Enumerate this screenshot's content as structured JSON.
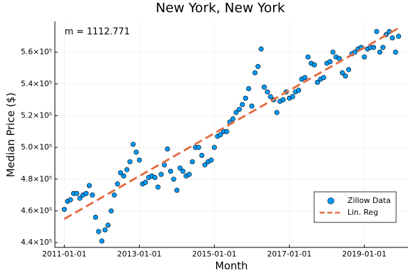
{
  "chart_data": {
    "type": "scatter",
    "title": "New York, New York",
    "annotation": "m = 1112.771",
    "xlabel": "Month",
    "ylabel": "Median Price ($)",
    "legend": "bottom-right",
    "grid": true,
    "xlim": [
      "2010-10-01",
      "2020-03-01"
    ],
    "xticks": [
      "2011-01-01",
      "2013-01-01",
      "2015-01-01",
      "2017-01-01",
      "2019-01-01"
    ],
    "ylim": [
      437000,
      579300
    ],
    "yticks": [
      {
        "value": 440000,
        "label": "4.4×10⁵"
      },
      {
        "value": 460000,
        "label": "4.6×10⁵"
      },
      {
        "value": 480000,
        "label": "4.8×10⁵"
      },
      {
        "value": 500000,
        "label": "5.0×10⁵"
      },
      {
        "value": 520000,
        "label": "5.2×10⁵"
      },
      {
        "value": 540000,
        "label": "5.4×10⁵"
      },
      {
        "value": 560000,
        "label": "5.6×10⁵"
      }
    ],
    "series": [
      {
        "name": "Zillow Data",
        "color": "#009af9",
        "mode": "markers",
        "x": [
          "2011-01-01",
          "2011-02-01",
          "2011-03-01",
          "2011-04-01",
          "2011-05-01",
          "2011-06-01",
          "2011-07-01",
          "2011-08-01",
          "2011-09-01",
          "2011-10-01",
          "2011-11-01",
          "2011-12-01",
          "2012-01-01",
          "2012-02-01",
          "2012-03-01",
          "2012-04-01",
          "2012-05-01",
          "2012-06-01",
          "2012-07-01",
          "2012-08-01",
          "2012-09-01",
          "2012-10-01",
          "2012-11-01",
          "2012-12-01",
          "2013-01-01",
          "2013-02-01",
          "2013-03-01",
          "2013-04-01",
          "2013-05-01",
          "2013-06-01",
          "2013-07-01",
          "2013-08-01",
          "2013-09-01",
          "2013-10-01",
          "2013-11-01",
          "2013-12-01",
          "2014-01-01",
          "2014-02-01",
          "2014-03-01",
          "2014-04-01",
          "2014-05-01",
          "2014-06-01",
          "2014-07-01",
          "2014-08-01",
          "2014-09-01",
          "2014-10-01",
          "2014-11-01",
          "2014-12-01",
          "2015-01-01",
          "2015-02-01",
          "2015-03-01",
          "2015-04-01",
          "2015-05-01",
          "2015-06-01",
          "2015-07-01",
          "2015-08-01",
          "2015-09-01",
          "2015-10-01",
          "2015-11-01",
          "2015-12-01",
          "2016-01-01",
          "2016-02-01",
          "2016-03-01",
          "2016-04-01",
          "2016-05-01",
          "2016-06-01",
          "2016-07-01",
          "2016-08-01",
          "2016-09-01",
          "2016-10-01",
          "2016-11-01",
          "2016-12-01",
          "2017-01-01",
          "2017-02-01",
          "2017-03-01",
          "2017-04-01",
          "2017-05-01",
          "2017-06-01",
          "2017-07-01",
          "2017-08-01",
          "2017-09-01",
          "2017-10-01",
          "2017-11-01",
          "2017-12-01",
          "2018-01-01",
          "2018-02-01",
          "2018-03-01",
          "2018-04-01",
          "2018-05-01",
          "2018-06-01",
          "2018-07-01",
          "2018-08-01",
          "2018-09-01",
          "2018-10-01",
          "2018-11-01",
          "2018-12-01",
          "2019-01-01",
          "2019-02-01",
          "2019-03-01",
          "2019-04-01",
          "2019-05-01",
          "2019-06-01",
          "2019-07-01",
          "2019-08-01",
          "2019-09-01",
          "2019-10-01",
          "2019-11-01",
          "2019-12-01"
        ],
        "values": [
          461000,
          466000,
          467000,
          471000,
          471000,
          468000,
          470000,
          471000,
          476000,
          470000,
          456000,
          447000,
          441000,
          448000,
          451000,
          460000,
          470000,
          477000,
          484000,
          482000,
          486000,
          491000,
          502000,
          497000,
          492000,
          477000,
          478000,
          481000,
          482000,
          481000,
          475000,
          483000,
          489000,
          499000,
          485000,
          480000,
          473000,
          487000,
          485000,
          482000,
          483000,
          491000,
          500000,
          500000,
          495000,
          489000,
          491000,
          492000,
          500000,
          507000,
          508000,
          510000,
          510000,
          516000,
          518000,
          522000,
          524000,
          527000,
          531000,
          537000,
          526000,
          547000,
          551000,
          562000,
          538000,
          535000,
          532000,
          530000,
          522000,
          529000,
          530000,
          535000,
          531000,
          532000,
          535000,
          536000,
          543000,
          544000,
          557000,
          553000,
          552000,
          541000,
          543000,
          544000,
          553000,
          554000,
          560000,
          557000,
          556000,
          547000,
          545000,
          549000,
          559000,
          560000,
          562000,
          563000,
          557000,
          562000,
          563000,
          563000,
          573000,
          560000,
          563000,
          571000,
          573000,
          569000,
          560000,
          570000
        ]
      },
      {
        "name": "Lin. Reg",
        "color": "#e26f46",
        "mode": "dashed-line",
        "x": [
          "2011-01-01",
          "2019-12-01"
        ],
        "values": [
          455000,
          575200
        ]
      }
    ]
  }
}
